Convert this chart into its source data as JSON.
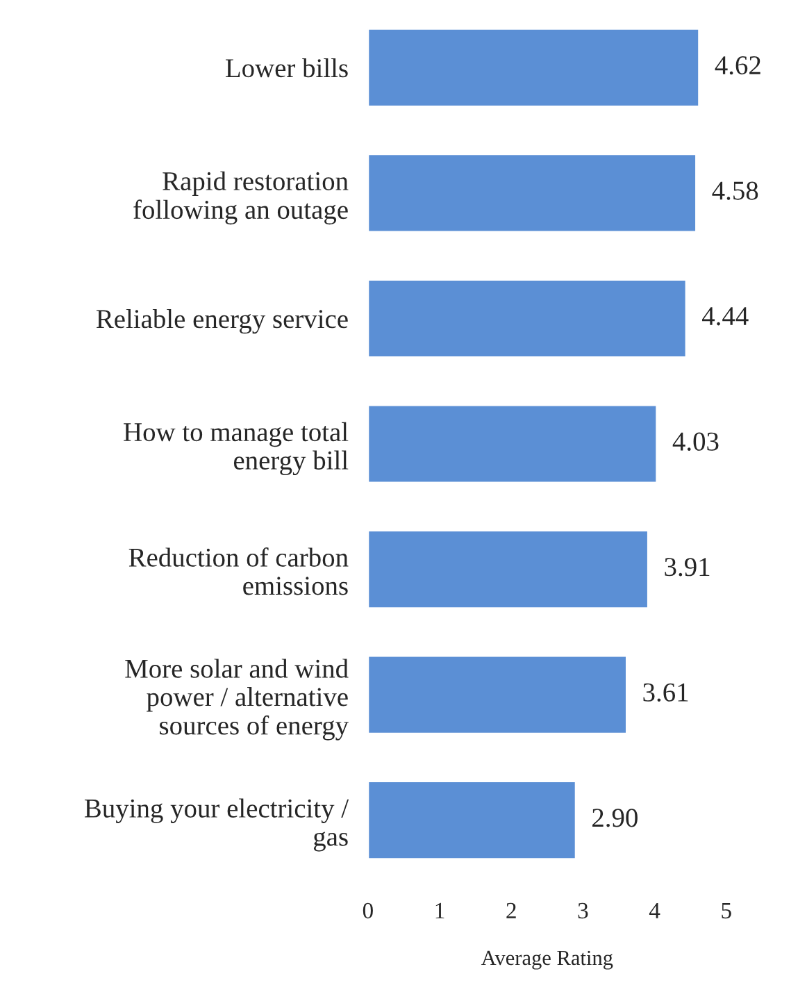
{
  "chart_data": {
    "type": "bar",
    "orientation": "horizontal",
    "xlabel": "Average Rating",
    "categories": [
      "Lower bills",
      "Rapid restoration\nfollowing an outage",
      "Reliable energy service",
      "How to manage total\nenergy bill",
      "Reduction of carbon\nemissions",
      "More solar and wind\npower / alternative\nsources of energy",
      "Buying your electricity /\ngas"
    ],
    "values": [
      4.62,
      4.58,
      4.44,
      4.03,
      3.91,
      3.61,
      2.9
    ],
    "value_labels": [
      "4.62",
      "4.58",
      "4.44",
      "4.03",
      "3.91",
      "3.61",
      "2.90"
    ],
    "color": "#5b8fd5",
    "xlim": [
      0,
      5
    ],
    "xticks": [
      0,
      1,
      2,
      3,
      4,
      5
    ],
    "grid": false,
    "legend": false
  }
}
